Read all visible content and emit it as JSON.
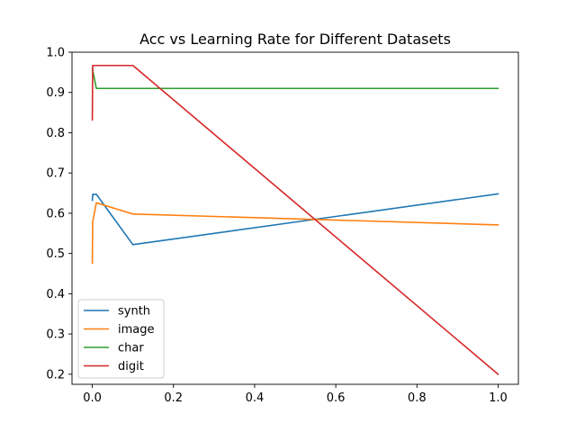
{
  "chart_data": {
    "type": "line",
    "title": "Acc vs Learning Rate for Different Datasets",
    "xlabel": "",
    "ylabel": "",
    "xlim": [
      -0.05,
      1.05
    ],
    "ylim": [
      0.175,
      1.0
    ],
    "x_ticks": [
      0.0,
      0.2,
      0.4,
      0.6,
      0.8,
      1.0
    ],
    "x_tick_labels": [
      "0.0",
      "0.2",
      "0.4",
      "0.6",
      "0.8",
      "1.0"
    ],
    "y_ticks": [
      0.2,
      0.3,
      0.4,
      0.5,
      0.6,
      0.7,
      0.8,
      0.9,
      1.0
    ],
    "y_tick_labels": [
      "0.2",
      "0.3",
      "0.4",
      "0.5",
      "0.6",
      "0.7",
      "0.8",
      "0.9",
      "1.0"
    ],
    "grid": false,
    "legend_position": "lower-left",
    "x": [
      0.0001,
      0.001,
      0.01,
      0.1,
      1.0
    ],
    "series": [
      {
        "name": "synth",
        "color": "#1f77b4",
        "values": [
          0.632,
          0.647,
          0.647,
          0.522,
          0.648
        ]
      },
      {
        "name": "image",
        "color": "#ff7f0e",
        "values": [
          0.476,
          0.578,
          0.626,
          0.598,
          0.571
        ]
      },
      {
        "name": "char",
        "color": "#2ca02c",
        "values": [
          0.96,
          0.955,
          0.91,
          0.91,
          0.91
        ]
      },
      {
        "name": "digit",
        "color": "#d62728",
        "values": [
          0.832,
          0.967,
          0.967,
          0.967,
          0.2
        ]
      }
    ]
  }
}
